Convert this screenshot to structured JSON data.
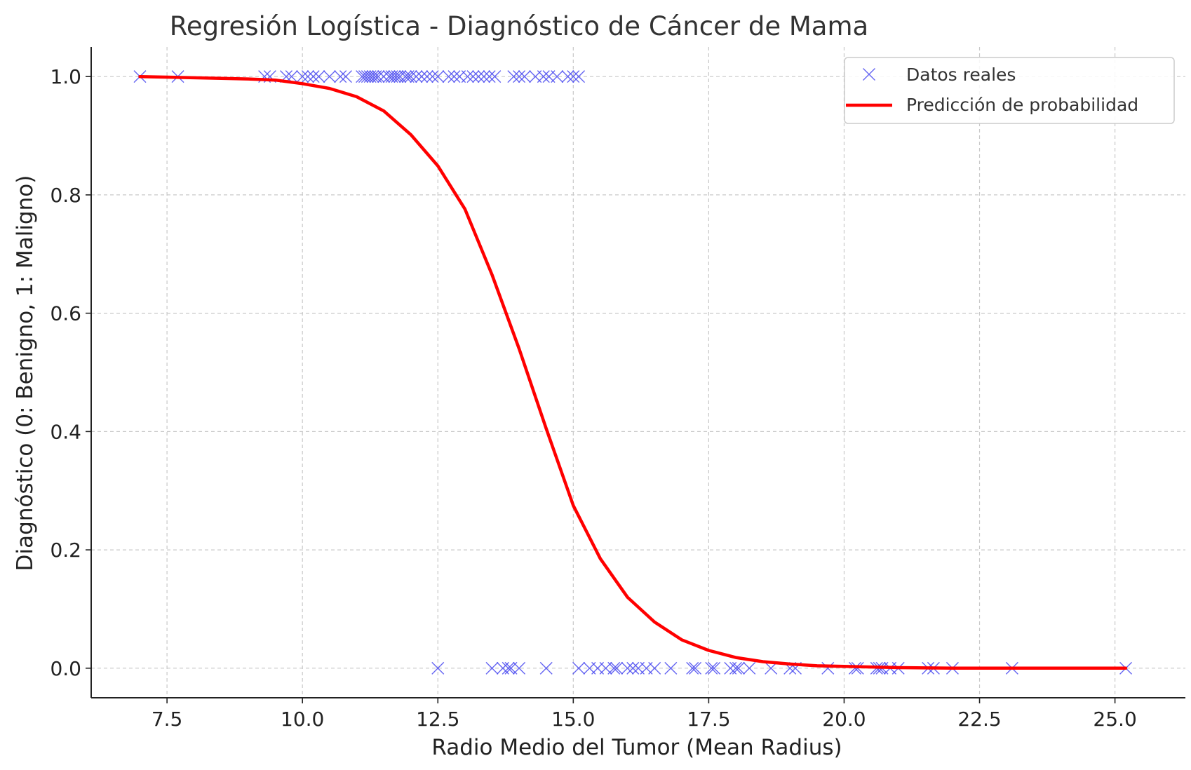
{
  "chart_data": {
    "type": "scatter",
    "title": "Regresión Logística - Diagnóstico de Cáncer de Mama",
    "xlabel": "Radio Medio del Tumor (Mean Radius)",
    "ylabel": "Diagnóstico (0: Benigno, 1: Maligno)",
    "xlim": [
      6.1,
      26.3
    ],
    "ylim": [
      -0.05,
      1.05
    ],
    "xticks": [
      7.5,
      10.0,
      12.5,
      15.0,
      17.5,
      20.0,
      22.5,
      25.0
    ],
    "xtick_labels": [
      "7.5",
      "10.0",
      "12.5",
      "15.0",
      "17.5",
      "20.0",
      "22.5",
      "25.0"
    ],
    "yticks": [
      0.0,
      0.2,
      0.4,
      0.6,
      0.8,
      1.0
    ],
    "ytick_labels": [
      "0.0",
      "0.2",
      "0.4",
      "0.6",
      "0.8",
      "1.0"
    ],
    "grid": true,
    "legend_position": "top-right",
    "series": [
      {
        "name": "Datos reales",
        "kind": "scatter",
        "marker": "x",
        "color": "#4a4af0",
        "points": [
          [
            7.0,
            1
          ],
          [
            7.7,
            1
          ],
          [
            9.3,
            1
          ],
          [
            9.4,
            1
          ],
          [
            9.7,
            1
          ],
          [
            9.8,
            1
          ],
          [
            10.0,
            1
          ],
          [
            10.1,
            1
          ],
          [
            10.2,
            1
          ],
          [
            10.3,
            1
          ],
          [
            10.5,
            1
          ],
          [
            10.7,
            1
          ],
          [
            10.8,
            1
          ],
          [
            11.1,
            1
          ],
          [
            11.15,
            1
          ],
          [
            11.2,
            1
          ],
          [
            11.25,
            1
          ],
          [
            11.3,
            1
          ],
          [
            11.35,
            1
          ],
          [
            11.4,
            1
          ],
          [
            11.5,
            1
          ],
          [
            11.6,
            1
          ],
          [
            11.65,
            1
          ],
          [
            11.7,
            1
          ],
          [
            11.75,
            1
          ],
          [
            11.8,
            1
          ],
          [
            11.9,
            1
          ],
          [
            11.95,
            1
          ],
          [
            12.0,
            1
          ],
          [
            12.1,
            1
          ],
          [
            12.2,
            1
          ],
          [
            12.3,
            1
          ],
          [
            12.4,
            1
          ],
          [
            12.5,
            1
          ],
          [
            12.7,
            1
          ],
          [
            12.8,
            1
          ],
          [
            12.9,
            1
          ],
          [
            13.05,
            1
          ],
          [
            13.15,
            1
          ],
          [
            13.25,
            1
          ],
          [
            13.35,
            1
          ],
          [
            13.45,
            1
          ],
          [
            13.55,
            1
          ],
          [
            13.9,
            1
          ],
          [
            14.0,
            1
          ],
          [
            14.1,
            1
          ],
          [
            14.3,
            1
          ],
          [
            14.45,
            1
          ],
          [
            14.55,
            1
          ],
          [
            14.7,
            1
          ],
          [
            14.9,
            1
          ],
          [
            15.0,
            1
          ],
          [
            15.1,
            1
          ],
          [
            12.5,
            0
          ],
          [
            13.5,
            0
          ],
          [
            13.7,
            0
          ],
          [
            13.8,
            0
          ],
          [
            13.85,
            0
          ],
          [
            14.0,
            0
          ],
          [
            14.5,
            0
          ],
          [
            15.1,
            0
          ],
          [
            15.3,
            0
          ],
          [
            15.45,
            0
          ],
          [
            15.6,
            0
          ],
          [
            15.75,
            0
          ],
          [
            15.8,
            0
          ],
          [
            16.0,
            0
          ],
          [
            16.1,
            0
          ],
          [
            16.2,
            0
          ],
          [
            16.35,
            0
          ],
          [
            16.5,
            0
          ],
          [
            16.8,
            0
          ],
          [
            17.2,
            0
          ],
          [
            17.25,
            0
          ],
          [
            17.55,
            0
          ],
          [
            17.6,
            0
          ],
          [
            17.9,
            0
          ],
          [
            18.0,
            0
          ],
          [
            18.05,
            0
          ],
          [
            18.25,
            0
          ],
          [
            18.65,
            0
          ],
          [
            19.0,
            0
          ],
          [
            19.1,
            0
          ],
          [
            19.7,
            0
          ],
          [
            20.2,
            0
          ],
          [
            20.25,
            0
          ],
          [
            20.6,
            0
          ],
          [
            20.65,
            0
          ],
          [
            20.7,
            0
          ],
          [
            20.85,
            0
          ],
          [
            21.0,
            0
          ],
          [
            21.55,
            0
          ],
          [
            21.65,
            0
          ],
          [
            22.0,
            0
          ],
          [
            23.1,
            0
          ],
          [
            25.2,
            0
          ]
        ]
      },
      {
        "name": "Predicción de probabilidad",
        "kind": "line",
        "color": "#ff0000",
        "x": [
          7.0,
          7.5,
          8.0,
          8.5,
          9.0,
          9.5,
          10.0,
          10.5,
          11.0,
          11.5,
          12.0,
          12.5,
          13.0,
          13.5,
          14.0,
          14.5,
          15.0,
          15.5,
          16.0,
          16.5,
          17.0,
          17.5,
          18.0,
          18.5,
          19.0,
          19.5,
          20.0,
          20.5,
          21.0,
          22.0,
          23.0,
          24.0,
          25.2
        ],
        "y": [
          1.0,
          0.999,
          0.998,
          0.997,
          0.996,
          0.994,
          0.988,
          0.98,
          0.966,
          0.942,
          0.902,
          0.849,
          0.776,
          0.665,
          0.54,
          0.405,
          0.275,
          0.185,
          0.12,
          0.078,
          0.048,
          0.03,
          0.018,
          0.011,
          0.007,
          0.004,
          0.003,
          0.002,
          0.001,
          0.0,
          0.0,
          0.0,
          0.0
        ]
      }
    ]
  }
}
